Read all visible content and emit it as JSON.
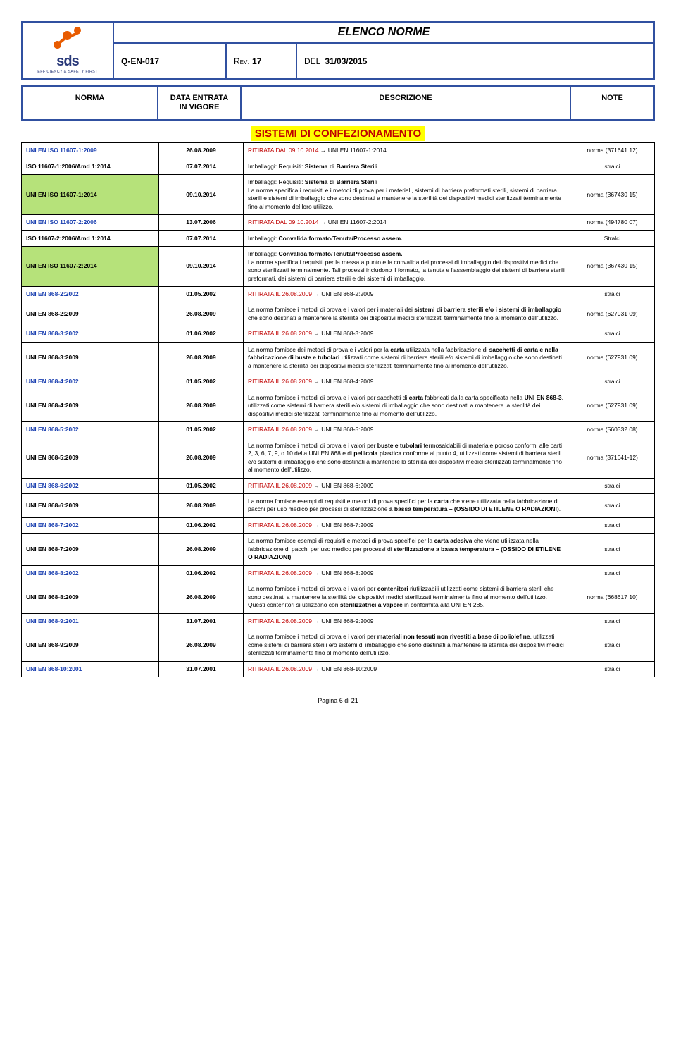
{
  "header": {
    "logo_text": "sds",
    "logo_sub": "EFFICIENCY & SAFETY FIRST",
    "title": "ELENCO NORME",
    "doc_code": "Q-EN-017",
    "rev_label": "Rev.",
    "rev_value": "17",
    "del_label": "DEL",
    "del_value": "31/03/2015"
  },
  "columns": {
    "norma": "NORMA",
    "data_line1": "DATA ENTRATA",
    "data_line2": "IN VIGORE",
    "descrizione": "DESCRIZIONE",
    "note": "NOTE"
  },
  "section_title": "SISTEMI DI CONFEZIONAMENTO",
  "rows": [
    {
      "norma": "UNI EN ISO 11607-1:2009",
      "norma_color": "blue",
      "hl": false,
      "date": "26.08.2009",
      "desc_html": "<span class='red'>RITIRATA DAL 09.10.2014</span> → UNI EN 11607-1:2014",
      "note": "norma (371641 12)"
    },
    {
      "norma": "ISO 11607-1:2006/Amd 1:2014",
      "norma_color": "black",
      "hl": false,
      "date": "07.07.2014",
      "desc_html": "Imballaggi: Requisiti: <span class='b'>Sistema di Barriera Sterili</span>",
      "note": "stralci"
    },
    {
      "norma": "UNI EN ISO 11607-1:2014",
      "norma_color": "black",
      "hl": true,
      "date": "09.10.2014",
      "desc_html": "Imballaggi: Requisiti: <span class='b'>Sistema di Barriera Sterili</span><br>La norma specifica i requisiti e i metodi di prova per i materiali, sistemi di barriera preformati sterili, sistemi di barriera sterili e sistemi di imballaggio che sono destinati a mantenere la sterilità dei dispositivi medici sterilizzati terminalmente fino al momento del loro utilizzo.",
      "note": "norma (367430 15)"
    },
    {
      "norma": "UNI EN ISO 11607-2:2006",
      "norma_color": "blue",
      "hl": false,
      "date": "13.07.2006",
      "desc_html": "<span class='red'>RITIRATA DAL 09.10.2014</span> → UNI EN 11607-2:2014",
      "note": "norma (494780 07)"
    },
    {
      "norma": "ISO 11607-2:2006/Amd 1:2014",
      "norma_color": "black",
      "hl": false,
      "date": "07.07.2014",
      "desc_html": "Imballaggi: <span class='b'>Convalida formato/Tenuta/Processo assem.</span>",
      "note": "Stralci"
    },
    {
      "norma": "UNI EN ISO 11607-2:2014",
      "norma_color": "black",
      "hl": true,
      "date": "09.10.2014",
      "desc_html": "Imballaggi: <span class='b'>Convalida formato/Tenuta/Processo assem.</span><br>La norma specifica i requisiti per la messa a punto e la convalida dei processi di imballaggio dei dispositivi medici che sono sterilizzati terminalmente. Tali processi includono il formato, la tenuta e l'assemblaggio dei sistemi di barriera sterili preformati, dei sistemi di barriera sterili e dei sistemi di imballaggio.",
      "note": "norma (367430 15)"
    },
    {
      "norma": "UNI EN 868-2:2002",
      "norma_color": "blue",
      "hl": false,
      "date": "01.05.2002",
      "desc_html": "<span class='red'>RITIRATA IL 26.08.2009</span> → UNI EN 868-2:2009",
      "note": "stralci"
    },
    {
      "norma": "UNI EN 868-2:2009",
      "norma_color": "black",
      "hl": false,
      "date": "26.08.2009",
      "desc_html": "La norma fornisce i metodi di prova e i valori per i materiali dei <span class='b'>sistemi di barriera sterili e/o i sistemi di imballaggio</span> che sono destinati a mantenere la sterilità dei dispositivi medici sterilizzati terminalmente fino al momento dell'utilizzo.",
      "note": "norma (627931 09)"
    },
    {
      "norma": "UNI EN 868-3:2002",
      "norma_color": "blue",
      "hl": false,
      "date": "01.06.2002",
      "desc_html": "<span class='red'>RITIRATA IL 26.08.2009</span> → UNI EN 868-3:2009",
      "note": "stralci"
    },
    {
      "norma": "UNI EN 868-3:2009",
      "norma_color": "black",
      "hl": false,
      "date": "26.08.2009",
      "desc_html": "La norma fornisce dei metodi di prova e i valori per la <span class='b'>carta</span> utilizzata nella fabbricazione di <span class='b'>sacchetti di carta e nella fabbricazione di buste e tubolari</span> utilizzati come sistemi di barriera sterili e/o sistemi di imballaggio che sono destinati a mantenere la sterilità dei dispositivi medici sterilizzati terminalmente fino al momento dell'utilizzo.",
      "note": "norma (627931 09)"
    },
    {
      "norma": "UNI EN 868-4:2002",
      "norma_color": "blue",
      "hl": false,
      "date": "01.05.2002",
      "desc_html": "<span class='red'>RITIRATA IL 26.08.2009</span> → UNI EN 868-4:2009",
      "note": "stralci"
    },
    {
      "norma": "UNI EN 868-4:2009",
      "norma_color": "black",
      "hl": false,
      "date": "26.08.2009",
      "desc_html": "La norma fornisce i metodi di prova e i valori per sacchetti di <span class='b'>carta</span> fabbricati dalla carta specificata nella <span class='b'>UNI EN 868-3</span>, utilizzati come sistemi di barriera sterili e/o sistemi di imballaggio che sono destinati a mantenere la sterilità dei dispositivi medici sterilizzati terminalmente fino al momento dell'utilizzo.",
      "note": "norma (627931 09)"
    },
    {
      "norma": "UNI EN 868-5:2002",
      "norma_color": "blue",
      "hl": false,
      "date": "01.05.2002",
      "desc_html": "<span class='red'>RITIRATA IL 26.08.2009</span> → UNI EN 868-5:2009",
      "note": "norma (560332 08)"
    },
    {
      "norma": "UNI EN 868-5:2009",
      "norma_color": "black",
      "hl": false,
      "date": "26.08.2009",
      "desc_html": "La norma fornisce i metodi di prova e i valori per <span class='b'>buste e tubolari</span> termosaldabili di materiale poroso conformi alle parti 2, 3, 6, 7, 9, o 10 della UNI EN 868 e di <span class='b'>pellicola plastica</span> conforme al punto 4, utilizzati come sistemi di barriera sterili e/o sistemi di imballaggio che sono destinati a mantenere la sterilità dei dispositivi medici sterilizzati terminalmente fino al momento dell'utilizzo.",
      "note": "norma (371641-12)"
    },
    {
      "norma": "UNI EN 868-6:2002",
      "norma_color": "blue",
      "hl": false,
      "date": "01.05.2002",
      "desc_html": "<span class='red'>RITIRATA IL 26.08.2009</span> → UNI EN 868-6:2009",
      "note": "stralci"
    },
    {
      "norma": "UNI EN 868-6:2009",
      "norma_color": "black",
      "hl": false,
      "date": "26.08.2009",
      "desc_html": "La norma fornisce esempi di requisiti e metodi di prova specifici per la <span class='b'>carta</span> che viene utilizzata nella fabbricazione di pacchi per uso medico per processi di sterilizzazione <span class='b'>a bassa temperatura – (OSSIDO DI ETILENE O RADIAZIONI)</span>.",
      "note": "stralci"
    },
    {
      "norma": "UNI EN 868-7:2002",
      "norma_color": "blue",
      "hl": false,
      "date": "01.06.2002",
      "desc_html": "<span class='red'>RITIRATA IL 26.08.2009</span> → UNI EN 868-7:2009",
      "note": "stralci"
    },
    {
      "norma": "UNI EN 868-7:2009",
      "norma_color": "black",
      "hl": false,
      "date": "26.08.2009",
      "desc_html": "La norma fornisce esempi di requisiti e metodi di prova specifici per la <span class='b'>carta adesiva</span> che viene utilizzata nella fabbricazione di pacchi per uso medico per processi di <span class='b'>sterilizzazione a bassa temperatura – (OSSIDO DI ETILENE O RADIAZIONI)</span>.",
      "note": "stralci"
    },
    {
      "norma": "UNI EN 868-8:2002",
      "norma_color": "blue",
      "hl": false,
      "date": "01.06.2002",
      "desc_html": "<span class='red'>RITIRATA IL 26.08.2009</span> → UNI EN 868-8:2009",
      "note": "stralci"
    },
    {
      "norma": "UNI EN 868-8:2009",
      "norma_color": "black",
      "hl": false,
      "date": "26.08.2009",
      "desc_html": "La norma fornisce i metodi di prova e i valori per <span class='b'>contenitori</span> riutilizzabili utilizzati come sistemi di barriera sterili che sono destinati a mantenere la sterilità dei dispositivi medici sterilizzati terminalmente fino al momento dell'utilizzo. Questi contenitori si utilizzano con <span class='b'>sterilizzatrici a vapore</span> in conformità alla UNI EN 285.",
      "note": "norma (668617 10)"
    },
    {
      "norma": "UNI EN 868-9:2001",
      "norma_color": "blue",
      "hl": false,
      "date": "31.07.2001",
      "desc_html": "<span class='red'>RITIRATA IL 26.08.2009</span> → UNI EN 868-9:2009",
      "note": "stralci"
    },
    {
      "norma": "UNI EN 868-9:2009",
      "norma_color": "black",
      "hl": false,
      "date": "26.08.2009",
      "desc_html": "La norma fornisce i metodi di prova e i valori per <span class='b'>materiali non tessuti non rivestiti a base di poliolefine</span>, utilizzati come sistemi di barriera sterili e/o sistemi di imballaggio che sono destinati a mantenere la sterilità dei dispositivi medici sterilizzati terminalmente fino al momento dell'utilizzo.",
      "note": "stralci"
    },
    {
      "norma": "UNI EN 868-10:2001",
      "norma_color": "blue",
      "hl": false,
      "date": "31.07.2001",
      "desc_html": "<span class='red'>RITIRATA IL 26.08.2009</span> → UNI EN 868-10:2009",
      "note": "stralci"
    }
  ],
  "footer": "Pagina 6 di 21"
}
